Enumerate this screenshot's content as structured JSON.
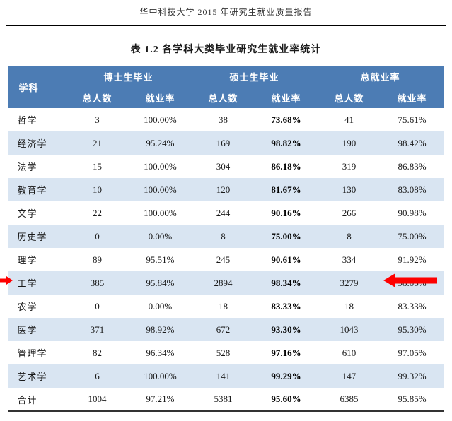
{
  "colors": {
    "header_bg": "#4C7CB4",
    "header_text": "#FFFFFF",
    "alt_row_bg": "#D9E5F2",
    "arrow": "#FE0000",
    "rule": "#000000",
    "body_text": "#1A1A1A"
  },
  "page": {
    "header": "华中科技大学 2015 年研究生就业质量报告"
  },
  "table": {
    "title": "表 1.2 各学科大类毕业研究生就业率统计",
    "group_headers": {
      "discipline": "学科",
      "phd": "博士生毕业",
      "masters": "硕士生毕业",
      "overall": "总就业率"
    },
    "sub_headers": [
      "总人数",
      "就业率",
      "总人数",
      "就业率",
      "总人数",
      "就业率"
    ],
    "rows": [
      {
        "label": "哲学",
        "values": [
          "3",
          "100.00%",
          "38",
          "73.68%",
          "41",
          "75.61%"
        ]
      },
      {
        "label": "经济学",
        "values": [
          "21",
          "95.24%",
          "169",
          "98.82%",
          "190",
          "98.42%"
        ]
      },
      {
        "label": "法学",
        "values": [
          "15",
          "100.00%",
          "304",
          "86.18%",
          "319",
          "86.83%"
        ]
      },
      {
        "label": "教育学",
        "values": [
          "10",
          "100.00%",
          "120",
          "81.67%",
          "130",
          "83.08%"
        ]
      },
      {
        "label": "文学",
        "values": [
          "22",
          "100.00%",
          "244",
          "90.16%",
          "266",
          "90.98%"
        ]
      },
      {
        "label": "历史学",
        "values": [
          "0",
          "0.00%",
          "8",
          "75.00%",
          "8",
          "75.00%"
        ]
      },
      {
        "label": "理学",
        "values": [
          "89",
          "95.51%",
          "245",
          "90.61%",
          "334",
          "91.92%"
        ]
      },
      {
        "label": "工学",
        "values": [
          "385",
          "95.84%",
          "2894",
          "98.34%",
          "3279",
          "98.05%"
        ]
      },
      {
        "label": "农学",
        "values": [
          "0",
          "0.00%",
          "18",
          "83.33%",
          "18",
          "83.33%"
        ]
      },
      {
        "label": "医学",
        "values": [
          "371",
          "98.92%",
          "672",
          "93.30%",
          "1043",
          "95.30%"
        ]
      },
      {
        "label": "管理学",
        "values": [
          "82",
          "96.34%",
          "528",
          "97.16%",
          "610",
          "97.05%"
        ]
      },
      {
        "label": "艺术学",
        "values": [
          "6",
          "100.00%",
          "141",
          "99.29%",
          "147",
          "99.32%"
        ]
      },
      {
        "label": "合计",
        "values": [
          "1004",
          "97.21%",
          "5381",
          "95.60%",
          "6385",
          "95.85%"
        ]
      }
    ],
    "annotations": {
      "highlighted_row": "工学",
      "arrows": [
        "left-arrow-pointing-right",
        "right-arrow-pointing-left"
      ]
    }
  }
}
